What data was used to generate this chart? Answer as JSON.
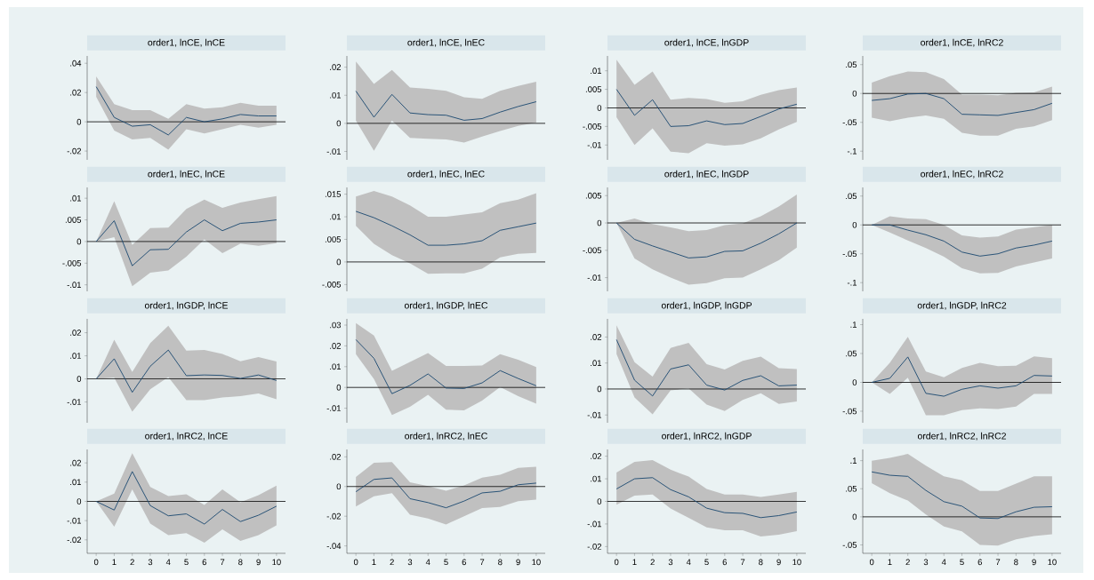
{
  "chart_data": [
    {
      "type": "line",
      "title": "order1, lnCE, lnCE",
      "x": [
        0,
        1,
        2,
        3,
        4,
        5,
        6,
        7,
        8,
        9,
        10
      ],
      "ylim": [
        -0.026,
        0.045
      ],
      "yticks": [
        {
          "value": -0.02,
          "label": "-.02"
        },
        0,
        {
          "value": 0.02,
          "label": ".02"
        },
        {
          "value": 0.04,
          "label": ".04"
        }
      ],
      "tick_labels": "y",
      "ref_lines": [
        {
          "axis": "y",
          "value": 0
        }
      ],
      "series": [
        {
          "color": "#1a476f",
          "values": [
            0.024,
            0.003,
            -0.003,
            -0.002,
            -0.009,
            0.003,
            0,
            0.002,
            0.005,
            0.004,
            0.004
          ],
          "lower": [
            0.017,
            -0.006,
            -0.012,
            -0.011,
            -0.019,
            -0.005,
            -0.008,
            -0.005,
            -0.002,
            -0.004,
            -0.002
          ],
          "upper": [
            0.031,
            0.012,
            0.008,
            0.008,
            0.002,
            0.012,
            0.009,
            0.01,
            0.013,
            0.011,
            0.011
          ]
        }
      ]
    },
    {
      "type": "line",
      "title": "order1, lnCE, lnEC",
      "x": [
        0,
        1,
        2,
        3,
        4,
        5,
        6,
        7,
        8,
        9,
        10
      ],
      "ylim": [
        -0.013,
        0.024
      ],
      "yticks": [
        {
          "value": -0.01,
          "label": "-.01"
        },
        0,
        {
          "value": 0.01,
          "label": ".01"
        },
        {
          "value": 0.02,
          "label": ".02"
        }
      ],
      "tick_labels": "y",
      "ref_lines": [
        {
          "axis": "y",
          "value": 0
        }
      ],
      "series": [
        {
          "color": "#1a476f",
          "values": [
            0.0115,
            0.0022,
            0.0103,
            0.0037,
            0.0031,
            0.0029,
            0.0011,
            0.0017,
            0.004,
            0.006,
            0.0077
          ],
          "lower": [
            0.001,
            -0.0098,
            0.001,
            -0.0052,
            -0.0055,
            -0.0057,
            -0.0068,
            -0.0047,
            -0.0027,
            -0.0009,
            0.0003
          ],
          "upper": [
            0.022,
            0.014,
            0.019,
            0.0128,
            0.0123,
            0.0116,
            0.0093,
            0.0087,
            0.0116,
            0.0133,
            0.0148
          ]
        }
      ]
    },
    {
      "type": "line",
      "title": "order1, lnCE, lnGDP",
      "x": [
        0,
        1,
        2,
        3,
        4,
        5,
        6,
        7,
        8,
        9,
        10
      ],
      "ylim": [
        -0.014,
        0.014
      ],
      "yticks": [
        {
          "value": -0.01,
          "label": "-.01"
        },
        {
          "value": -0.005,
          "label": "-.005"
        },
        0,
        {
          "value": 0.005,
          "label": ".005"
        },
        {
          "value": 0.01,
          "label": ".01"
        }
      ],
      "tick_labels": "y",
      "ref_lines": [
        {
          "axis": "y",
          "value": 0
        }
      ],
      "series": [
        {
          "color": "#1a476f",
          "values": [
            0.005,
            -0.002,
            0.0022,
            -0.005,
            -0.0048,
            -0.0035,
            -0.0045,
            -0.0042,
            -0.0023,
            -0.0003,
            0.001
          ],
          "lower": [
            -0.0025,
            -0.01,
            -0.0055,
            -0.0118,
            -0.0122,
            -0.0095,
            -0.0102,
            -0.0098,
            -0.0082,
            -0.0058,
            -0.0038
          ],
          "upper": [
            0.013,
            0.0062,
            0.0098,
            0.0022,
            0.0027,
            0.0024,
            0.0014,
            0.0018,
            0.0035,
            0.0048,
            0.0055
          ]
        }
      ]
    },
    {
      "type": "line",
      "title": "order1, lnCE, lnRC2",
      "x": [
        0,
        1,
        2,
        3,
        4,
        5,
        6,
        7,
        8,
        9,
        10
      ],
      "ylim": [
        -0.115,
        0.065
      ],
      "yticks": [
        {
          "value": -0.1,
          "label": "-.1"
        },
        {
          "value": -0.05,
          "label": "-.05"
        },
        0,
        {
          "value": 0.05,
          "label": ".05"
        }
      ],
      "tick_labels": "y",
      "ref_lines": [
        {
          "axis": "y",
          "value": 0
        }
      ],
      "series": [
        {
          "color": "#1a476f",
          "values": [
            -0.012,
            -0.009,
            -0.001,
            0,
            -0.009,
            -0.036,
            -0.037,
            -0.038,
            -0.033,
            -0.028,
            -0.017
          ],
          "lower": [
            -0.042,
            -0.048,
            -0.042,
            -0.038,
            -0.044,
            -0.068,
            -0.073,
            -0.073,
            -0.061,
            -0.057,
            -0.046
          ],
          "upper": [
            0.019,
            0.03,
            0.038,
            0.037,
            0.025,
            -0.002,
            -0.002,
            -0.003,
            0.001,
            0.002,
            0.012
          ]
        }
      ]
    },
    {
      "type": "line",
      "title": "order1, lnEC, lnCE",
      "x": [
        0,
        1,
        2,
        3,
        4,
        5,
        6,
        7,
        8,
        9,
        10
      ],
      "ylim": [
        -0.0115,
        0.0125
      ],
      "yticks": [
        {
          "value": -0.01,
          "label": "-.01"
        },
        {
          "value": -0.005,
          "label": "-.005"
        },
        0,
        {
          "value": 0.005,
          "label": ".005"
        },
        {
          "value": 0.01,
          "label": ".01"
        }
      ],
      "tick_labels": "y",
      "ref_lines": [
        {
          "axis": "y",
          "value": 0
        }
      ],
      "series": [
        {
          "color": "#1a476f",
          "values": [
            0,
            0.0048,
            -0.0056,
            -0.0019,
            -0.0018,
            0.0022,
            0.005,
            0.0025,
            0.0042,
            0.0045,
            0.005
          ],
          "lower": [
            0,
            0.001,
            -0.0103,
            -0.0072,
            -0.0067,
            -0.0035,
            0.0005,
            -0.0027,
            -0.0005,
            -0.001,
            -0.0004
          ],
          "upper": [
            0,
            0.0093,
            -0.0008,
            0.0031,
            0.0032,
            0.0075,
            0.0097,
            0.0078,
            0.009,
            0.0098,
            0.0105
          ]
        }
      ]
    },
    {
      "type": "line",
      "title": "order1, lnEC, lnEC",
      "x": [
        0,
        1,
        2,
        3,
        4,
        5,
        6,
        7,
        8,
        9,
        10
      ],
      "ylim": [
        -0.0065,
        0.0165
      ],
      "yticks": [
        {
          "value": -0.005,
          "label": "-.005"
        },
        0,
        {
          "value": 0.005,
          "label": ".005"
        },
        {
          "value": 0.01,
          "label": ".01"
        },
        {
          "value": 0.015,
          "label": ".015"
        }
      ],
      "tick_labels": "y",
      "ref_lines": [
        {
          "axis": "y",
          "value": 0
        }
      ],
      "series": [
        {
          "color": "#1a476f",
          "values": [
            0.0112,
            0.0098,
            0.008,
            0.006,
            0.0037,
            0.0037,
            0.004,
            0.0047,
            0.007,
            0.0078,
            0.0086
          ],
          "lower": [
            0.008,
            0.004,
            0.0015,
            -0.0003,
            -0.0026,
            -0.0025,
            -0.0025,
            -0.0015,
            0.001,
            0.0018,
            0.002
          ],
          "upper": [
            0.0145,
            0.0157,
            0.0145,
            0.0125,
            0.01,
            0.01,
            0.0105,
            0.011,
            0.013,
            0.0138,
            0.0152
          ]
        }
      ]
    },
    {
      "type": "line",
      "title": "order1, lnEC, lnGDP",
      "x": [
        0,
        1,
        2,
        3,
        4,
        5,
        6,
        7,
        8,
        9,
        10
      ],
      "ylim": [
        -0.0125,
        0.0065
      ],
      "yticks": [
        {
          "value": -0.01,
          "label": "-.01"
        },
        {
          "value": -0.005,
          "label": "-.005"
        },
        0,
        {
          "value": 0.005,
          "label": ".005"
        }
      ],
      "tick_labels": "y",
      "ref_lines": [
        {
          "axis": "y",
          "value": 0
        }
      ],
      "series": [
        {
          "color": "#1a476f",
          "values": [
            0,
            -0.003,
            -0.0042,
            -0.0053,
            -0.0064,
            -0.0062,
            -0.0052,
            -0.0051,
            -0.0037,
            -0.002,
            0
          ],
          "lower": [
            0,
            -0.0065,
            -0.0085,
            -0.01,
            -0.0113,
            -0.011,
            -0.0101,
            -0.01,
            -0.0085,
            -0.0068,
            -0.0045
          ],
          "upper": [
            0,
            0.0008,
            -0.0002,
            -0.0008,
            -0.0015,
            -0.0013,
            -0.0004,
            -0.0001,
            0.0012,
            0.003,
            0.0052
          ]
        }
      ]
    },
    {
      "type": "line",
      "title": "order1, lnEC, lnRC2",
      "x": [
        0,
        1,
        2,
        3,
        4,
        5,
        6,
        7,
        8,
        9,
        10
      ],
      "ylim": [
        -0.115,
        0.065
      ],
      "yticks": [
        {
          "value": -0.1,
          "label": "-.1"
        },
        {
          "value": -0.05,
          "label": "-.05"
        },
        0,
        {
          "value": 0.05,
          "label": ".05"
        }
      ],
      "tick_labels": "y",
      "ref_lines": [
        {
          "axis": "y",
          "value": 0
        }
      ],
      "series": [
        {
          "color": "#1a476f",
          "values": [
            0,
            0,
            -0.009,
            -0.017,
            -0.028,
            -0.047,
            -0.054,
            -0.05,
            -0.04,
            -0.035,
            -0.028
          ],
          "lower": [
            0,
            -0.013,
            -0.027,
            -0.04,
            -0.055,
            -0.075,
            -0.084,
            -0.083,
            -0.072,
            -0.065,
            -0.058
          ],
          "upper": [
            0,
            0.015,
            0.011,
            0.01,
            0,
            -0.018,
            -0.022,
            -0.02,
            -0.008,
            -0.004,
            0
          ]
        }
      ]
    },
    {
      "type": "line",
      "title": "order1, lnGDP, lnCE",
      "x": [
        0,
        1,
        2,
        3,
        4,
        5,
        6,
        7,
        8,
        9,
        10
      ],
      "ylim": [
        -0.019,
        0.026
      ],
      "yticks": [
        {
          "value": -0.01,
          "label": "-.01"
        },
        0,
        {
          "value": 0.01,
          "label": ".01"
        },
        {
          "value": 0.02,
          "label": ".02"
        }
      ],
      "tick_labels": "y",
      "ref_lines": [
        {
          "axis": "y",
          "value": 0
        }
      ],
      "series": [
        {
          "color": "#1a476f",
          "values": [
            0,
            0.0087,
            -0.0058,
            0.0055,
            0.0125,
            0.0014,
            0.0017,
            0.0015,
            0.0002,
            0.0017,
            -0.0007
          ],
          "lower": [
            0,
            0.0005,
            -0.0142,
            -0.0045,
            0.0008,
            -0.0092,
            -0.0092,
            -0.008,
            -0.0075,
            -0.0063,
            -0.0088
          ],
          "upper": [
            0,
            0.017,
            0.003,
            0.0155,
            0.023,
            0.0122,
            0.0125,
            0.0108,
            0.0076,
            0.0095,
            0.0075
          ]
        }
      ]
    },
    {
      "type": "line",
      "title": "order1, lnGDP, lnEC",
      "x": [
        0,
        1,
        2,
        3,
        4,
        5,
        6,
        7,
        8,
        9,
        10
      ],
      "ylim": [
        -0.017,
        0.033
      ],
      "yticks": [
        {
          "value": -0.01,
          "label": "-.01"
        },
        0,
        {
          "value": 0.01,
          "label": ".01"
        },
        {
          "value": 0.02,
          "label": ".02"
        },
        {
          "value": 0.03,
          "label": ".03"
        }
      ],
      "tick_labels": "y",
      "ref_lines": [
        {
          "axis": "y",
          "value": 0
        }
      ],
      "series": [
        {
          "color": "#1a476f",
          "values": [
            0.023,
            0.014,
            -0.003,
            0.001,
            0.0065,
            -0.0003,
            -0.0005,
            0.0022,
            0.0081,
            0.0043,
            0.0008
          ],
          "lower": [
            0.016,
            0.004,
            -0.0133,
            -0.0093,
            -0.0035,
            -0.0107,
            -0.011,
            -0.0063,
            0.0002,
            -0.0042,
            -0.0078
          ],
          "upper": [
            0.031,
            0.025,
            0.008,
            0.0123,
            0.0165,
            0.0103,
            0.0103,
            0.0106,
            0.016,
            0.0133,
            0.0098
          ]
        }
      ]
    },
    {
      "type": "line",
      "title": "order1, lnGDP, lnGDP",
      "x": [
        0,
        1,
        2,
        3,
        4,
        5,
        6,
        7,
        8,
        9,
        10
      ],
      "ylim": [
        -0.013,
        0.027
      ],
      "yticks": [
        {
          "value": -0.01,
          "label": "-.01"
        },
        0,
        {
          "value": 0.01,
          "label": ".01"
        },
        {
          "value": 0.02,
          "label": ".02"
        }
      ],
      "tick_labels": "y",
      "ref_lines": [
        {
          "axis": "y",
          "value": 0
        }
      ],
      "series": [
        {
          "color": "#1a476f",
          "values": [
            0.019,
            0.0034,
            -0.0027,
            0.0077,
            0.0093,
            0.0015,
            -0.0004,
            0.0033,
            0.0051,
            0.0012,
            0.0015
          ],
          "lower": [
            0.0135,
            -0.0033,
            -0.0098,
            -0.0005,
            0.0002,
            -0.006,
            -0.0085,
            -0.0042,
            -0.0016,
            -0.0057,
            -0.0048
          ],
          "upper": [
            0.0245,
            0.0103,
            0.0048,
            0.0158,
            0.0178,
            0.0096,
            0.0075,
            0.0108,
            0.0125,
            0.008,
            0.0077
          ]
        }
      ]
    },
    {
      "type": "line",
      "title": "order1, lnGDP, lnRC2",
      "x": [
        0,
        1,
        2,
        3,
        4,
        5,
        6,
        7,
        8,
        9,
        10
      ],
      "ylim": [
        -0.07,
        0.11
      ],
      "yticks": [
        {
          "value": -0.05,
          "label": "-.05"
        },
        0,
        {
          "value": 0.05,
          "label": ".05"
        },
        {
          "value": 0.1,
          "label": ".1"
        }
      ],
      "tick_labels": "y",
      "ref_lines": [
        {
          "axis": "y",
          "value": 0
        }
      ],
      "series": [
        {
          "color": "#1a476f",
          "values": [
            0,
            0.007,
            0.044,
            -0.019,
            -0.024,
            -0.012,
            -0.006,
            -0.01,
            -0.006,
            0.012,
            0.011
          ],
          "lower": [
            0,
            -0.02,
            0.008,
            -0.057,
            -0.057,
            -0.048,
            -0.045,
            -0.046,
            -0.042,
            -0.02,
            -0.02
          ],
          "upper": [
            0,
            0.034,
            0.079,
            0.019,
            0.009,
            0.025,
            0.034,
            0.028,
            0.029,
            0.045,
            0.042
          ]
        }
      ]
    },
    {
      "type": "line",
      "title": "order1, lnRC2, lnCE",
      "x": [
        0,
        1,
        2,
        3,
        4,
        5,
        6,
        7,
        8,
        9,
        10
      ],
      "xlim": [
        -0.5,
        10.5
      ],
      "xticks": [
        0,
        1,
        2,
        3,
        4,
        5,
        6,
        7,
        8,
        9,
        10
      ],
      "ylim": [
        -0.027,
        0.027
      ],
      "yticks": [
        {
          "value": -0.02,
          "label": "-.02"
        },
        {
          "value": -0.01,
          "label": "-.01"
        },
        0,
        {
          "value": 0.01,
          "label": ".01"
        },
        {
          "value": 0.02,
          "label": ".02"
        }
      ],
      "ref_lines": [
        {
          "axis": "y",
          "value": 0
        }
      ],
      "series": [
        {
          "color": "#1a476f",
          "values": [
            0,
            -0.0045,
            0.0155,
            -0.0022,
            -0.0075,
            -0.0065,
            -0.0118,
            -0.0042,
            -0.0105,
            -0.0072,
            -0.0025
          ],
          "lower": [
            0,
            -0.0132,
            0.0062,
            -0.0115,
            -0.0175,
            -0.0165,
            -0.0215,
            -0.0145,
            -0.0205,
            -0.0175,
            -0.0125
          ],
          "upper": [
            0,
            0.004,
            0.025,
            0.0075,
            0.0028,
            0.0037,
            -0.0018,
            0.0062,
            -0.0005,
            0.0032,
            0.0082
          ]
        }
      ]
    },
    {
      "type": "line",
      "title": "order1, lnRC2, lnEC",
      "x": [
        0,
        1,
        2,
        3,
        4,
        5,
        6,
        7,
        8,
        9,
        10
      ],
      "xlim": [
        -0.5,
        10.5
      ],
      "xticks": [
        0,
        1,
        2,
        3,
        4,
        5,
        6,
        7,
        8,
        9,
        10
      ],
      "ylim": [
        -0.045,
        0.025
      ],
      "yticks": [
        {
          "value": -0.04,
          "label": "-.04"
        },
        {
          "value": -0.02,
          "label": "-.02"
        },
        0,
        {
          "value": 0.02,
          "label": ".02"
        }
      ],
      "ref_lines": [
        {
          "axis": "y",
          "value": 0
        }
      ],
      "series": [
        {
          "color": "#1a476f",
          "values": [
            -0.0035,
            0.0048,
            0.0058,
            -0.0082,
            -0.0108,
            -0.0143,
            -0.0098,
            -0.0043,
            -0.0032,
            0.0012,
            0.0023
          ],
          "lower": [
            -0.0135,
            -0.0065,
            -0.0045,
            -0.019,
            -0.0215,
            -0.0255,
            -0.02,
            -0.0145,
            -0.0138,
            -0.0098,
            -0.0088
          ],
          "upper": [
            0.0065,
            0.016,
            0.0165,
            0.0028,
            0.0003,
            -0.0028,
            0.0008,
            0.006,
            0.008,
            0.0125,
            0.0133
          ]
        }
      ]
    },
    {
      "type": "line",
      "title": "order1, lnRC2, lnGDP",
      "x": [
        0,
        1,
        2,
        3,
        4,
        5,
        6,
        7,
        8,
        9,
        10
      ],
      "xlim": [
        -0.5,
        10.5
      ],
      "xticks": [
        0,
        1,
        2,
        3,
        4,
        5,
        6,
        7,
        8,
        9,
        10
      ],
      "ylim": [
        -0.023,
        0.023
      ],
      "yticks": [
        {
          "value": -0.02,
          "label": "-.02"
        },
        {
          "value": -0.01,
          "label": "-.01"
        },
        0,
        {
          "value": 0.01,
          "label": ".01"
        },
        {
          "value": 0.02,
          "label": ".02"
        }
      ],
      "ref_lines": [
        {
          "axis": "y",
          "value": 0
        }
      ],
      "series": [
        {
          "color": "#1a476f",
          "values": [
            0.0055,
            0.01,
            0.0105,
            0.0052,
            0.002,
            -0.003,
            -0.005,
            -0.0053,
            -0.0072,
            -0.0063,
            -0.0047
          ],
          "lower": [
            -0.0015,
            0.0025,
            0.003,
            -0.0032,
            -0.0073,
            -0.0115,
            -0.0128,
            -0.0128,
            -0.0155,
            -0.0148,
            -0.0132
          ],
          "upper": [
            0.0128,
            0.0175,
            0.0183,
            0.014,
            0.011,
            0.0055,
            0.003,
            0.003,
            0.002,
            0.003,
            0.0042
          ]
        }
      ]
    },
    {
      "type": "line",
      "title": "order1, lnRC2, lnRC2",
      "x": [
        0,
        1,
        2,
        3,
        4,
        5,
        6,
        7,
        8,
        9,
        10
      ],
      "xlim": [
        -0.5,
        10.5
      ],
      "xticks": [
        0,
        1,
        2,
        3,
        4,
        5,
        6,
        7,
        8,
        9,
        10
      ],
      "ylim": [
        -0.065,
        0.12
      ],
      "yticks": [
        {
          "value": -0.05,
          "label": "-.05"
        },
        0,
        {
          "value": 0.05,
          "label": ".05"
        },
        {
          "value": 0.1,
          "label": ".1"
        }
      ],
      "ref_lines": [
        {
          "axis": "y",
          "value": 0
        }
      ],
      "series": [
        {
          "color": "#1a476f",
          "values": [
            0.08,
            0.074,
            0.072,
            0.047,
            0.027,
            0.019,
            -0.002,
            -0.003,
            0.009,
            0.017,
            0.018
          ],
          "lower": [
            0.06,
            0.042,
            0.029,
            0.004,
            -0.017,
            -0.026,
            -0.05,
            -0.051,
            -0.04,
            -0.034,
            -0.031
          ],
          "upper": [
            0.1,
            0.105,
            0.112,
            0.091,
            0.072,
            0.065,
            0.046,
            0.046,
            0.059,
            0.072,
            0.072
          ]
        }
      ]
    }
  ]
}
